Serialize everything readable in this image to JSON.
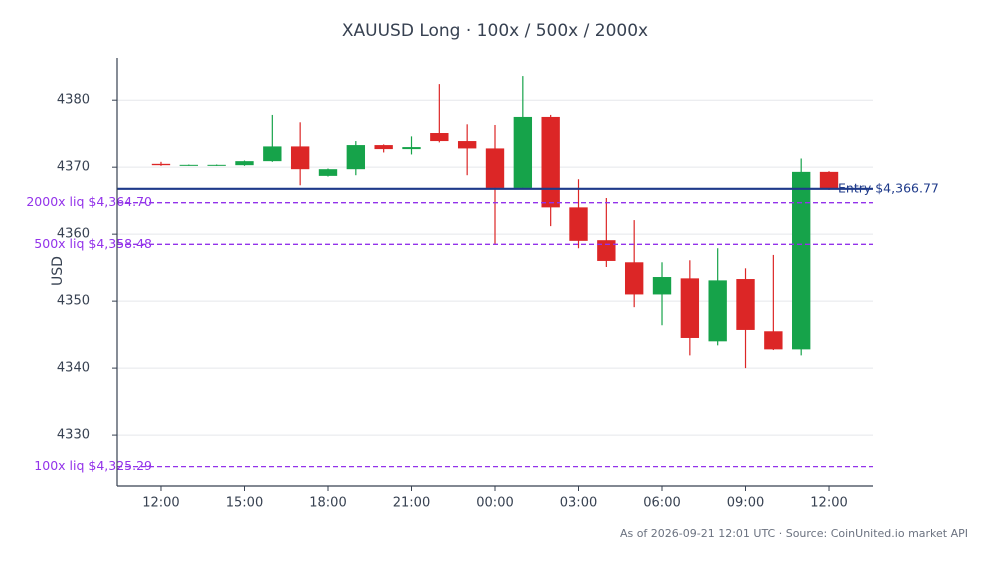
{
  "chart_data": {
    "type": "candlestick",
    "title": "XAUUSD Long · 100x / 500x / 2000x",
    "ylabel": "USD",
    "footer": "As of 2026-09-21 12:01 UTC · Source: CoinUnited.io market API",
    "categories": [
      "12:00",
      null,
      null,
      "15:00",
      null,
      null,
      "18:00",
      null,
      null,
      "21:00",
      null,
      null,
      "00:00",
      null,
      null,
      "03:00",
      null,
      null,
      "06:00",
      null,
      null,
      "09:00",
      null,
      null,
      "12:00"
    ],
    "open": [
      4370.5,
      4370.3,
      4370.3,
      4370.3,
      4370.9,
      4373.1,
      4368.7,
      4369.7,
      4373.3,
      4372.7,
      4375.1,
      4373.9,
      4372.8,
      4366.9,
      4377.5,
      4364.0,
      4359.1,
      4355.8,
      4351.0,
      4353.4,
      4344.0,
      4353.3,
      4345.5,
      4342.8,
      4369.3
    ],
    "high": [
      4370.8,
      4370.4,
      4370.4,
      4371.0,
      4377.8,
      4376.7,
      4369.8,
      4373.9,
      4373.4,
      4374.6,
      4382.4,
      4376.4,
      4376.3,
      4383.6,
      4377.8,
      4368.2,
      4365.4,
      4362.1,
      4355.8,
      4356.1,
      4357.9,
      4354.9,
      4356.9,
      4371.3,
      4369.4
    ],
    "low": [
      4370.2,
      4370.2,
      4370.2,
      4370.2,
      4370.8,
      4367.3,
      4368.6,
      4368.8,
      4372.2,
      4371.9,
      4373.7,
      4368.8,
      4358.5,
      4366.8,
      4361.2,
      4357.9,
      4355.1,
      4349.1,
      4346.4,
      4341.9,
      4343.4,
      4340.0,
      4342.7,
      4341.9,
      4366.6
    ],
    "close": [
      4370.3,
      4370.35,
      4370.35,
      4370.9,
      4373.1,
      4369.7,
      4369.7,
      4373.3,
      4372.7,
      4373.0,
      4373.9,
      4372.8,
      4366.9,
      4377.5,
      4364.0,
      4359.0,
      4356.0,
      4351.0,
      4353.6,
      4344.5,
      4353.1,
      4345.7,
      4342.8,
      4369.3,
      4366.8
    ],
    "up_color": "#16a34a",
    "down_color": "#dc2626",
    "ylim": [
      4322.4,
      4386.3
    ],
    "yticks": [
      4330,
      4340,
      4350,
      4360,
      4370,
      4380
    ],
    "grid": true,
    "hlines": [
      {
        "value": 4366.77,
        "label": "Entry $4,366.77",
        "color": "#1e3a8a",
        "style": "solid"
      },
      {
        "value": 4364.7,
        "label": "2000x liq $4,364.70",
        "color": "#9333ea",
        "style": "dashed"
      },
      {
        "value": 4358.48,
        "label": "500x liq $4,358.48",
        "color": "#9333ea",
        "style": "dashed"
      },
      {
        "value": 4325.29,
        "label": "100x liq $4,325.29",
        "color": "#9333ea",
        "style": "dashed"
      }
    ]
  }
}
